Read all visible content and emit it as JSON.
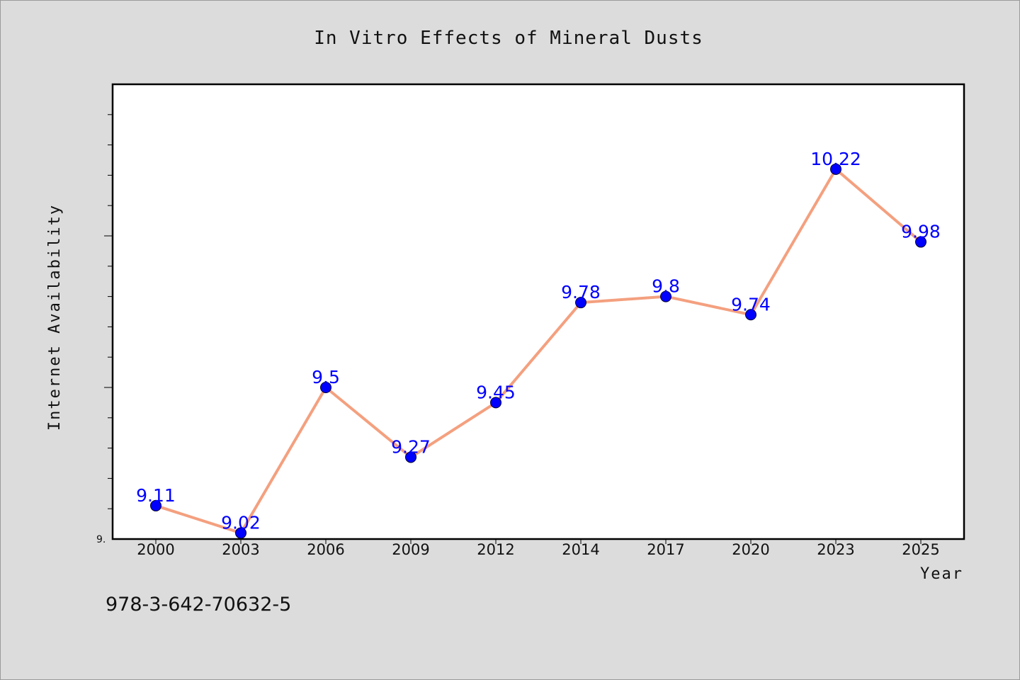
{
  "chart_data": {
    "type": "line",
    "title": "In Vitro Effects of Mineral Dusts",
    "xlabel": "Year",
    "ylabel": "Internet Availability",
    "categories": [
      "2000",
      "2003",
      "2006",
      "2009",
      "2012",
      "2014",
      "2017",
      "2020",
      "2023",
      "2025"
    ],
    "series": [
      {
        "values": [
          9.11,
          9.02,
          9.5,
          9.27,
          9.45,
          9.78,
          9.8,
          9.74,
          10.22,
          9.98
        ],
        "labels": [
          "9.11",
          "9.02",
          "9.5",
          "9.27",
          "9.45",
          "9.78",
          "9.8",
          "9.74",
          "10.22",
          "9.98"
        ],
        "line_color": "#f4a07f",
        "marker_color": "#0000ff"
      }
    ],
    "ylim": [
      9.0,
      10.5
    ],
    "y_min_tick_label": "9.",
    "grid": false,
    "legend": "none"
  },
  "footer": {
    "isbn": "978-3-642-70632-5"
  }
}
